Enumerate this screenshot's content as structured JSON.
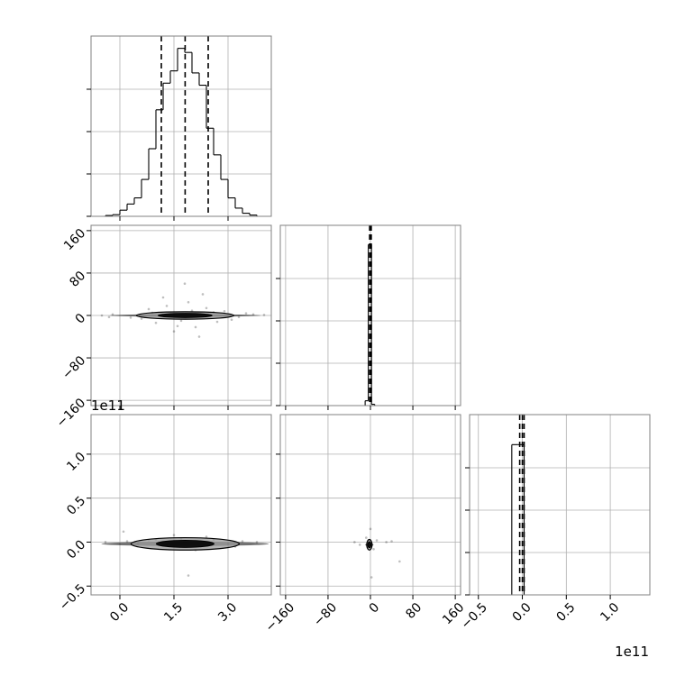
{
  "chart_data": {
    "type": "corner",
    "colors": {
      "ink": "#000000",
      "grid": "#b0b0b0",
      "panel_edge": "#808080"
    },
    "grid": true,
    "params": [
      {
        "id": "p0",
        "range": [
          -0.8,
          4.2
        ],
        "ticks": [
          0.0,
          1.5,
          3.0
        ],
        "tick_labels": [
          "0.0",
          "1.5",
          "3.0"
        ]
      },
      {
        "id": "p1",
        "range": [
          -170,
          170
        ],
        "ticks": [
          -160,
          -80,
          0,
          80,
          160
        ],
        "tick_labels": [
          "−160",
          "−80",
          "0",
          "80",
          "160"
        ]
      },
      {
        "id": "p2",
        "range": [
          -0.6,
          1.45
        ],
        "ticks": [
          -0.5,
          0.0,
          0.5,
          1.0
        ],
        "tick_labels": [
          "−0.5",
          "0.0",
          "0.5",
          "1.0"
        ],
        "offset_label": "1e11"
      }
    ],
    "histograms": [
      {
        "param": "p0",
        "bin_edges": [
          -0.4,
          -0.2,
          0.0,
          0.2,
          0.4,
          0.6,
          0.8,
          1.0,
          1.2,
          1.4,
          1.6,
          1.8,
          2.0,
          2.2,
          2.4,
          2.6,
          2.8,
          3.0,
          3.2,
          3.4,
          3.6,
          3.8
        ],
        "counts": [
          0.004,
          0.008,
          0.03,
          0.06,
          0.09,
          0.18,
          0.33,
          0.52,
          0.65,
          0.71,
          0.82,
          0.8,
          0.7,
          0.64,
          0.43,
          0.3,
          0.18,
          0.09,
          0.04,
          0.015,
          0.006
        ],
        "ylim": [
          0,
          0.88
        ],
        "quantiles": [
          1.15,
          1.81,
          2.45
        ]
      },
      {
        "param": "p1",
        "bin_edges": [
          -10,
          -4,
          2,
          8
        ],
        "counts": [
          0.03,
          1.0,
          0.008
        ],
        "ylim": [
          0,
          1.12
        ],
        "quantiles": [
          -1.5,
          0,
          1.5
        ]
      },
      {
        "param": "p2",
        "bin_edges": [
          -0.12,
          -0.05,
          0.02
        ],
        "counts": [
          1.0,
          1.0
        ],
        "ylim": [
          0,
          1.2
        ],
        "quantiles": [
          -0.03,
          0,
          0.02
        ]
      }
    ],
    "pair_plots": [
      {
        "x": "p0",
        "y": "p1",
        "center": [
          1.81,
          0
        ],
        "points": [
          [
            -0.5,
            0
          ],
          [
            -0.2,
            2
          ],
          [
            0.3,
            -4
          ],
          [
            0.8,
            12
          ],
          [
            1.0,
            -14
          ],
          [
            1.3,
            18
          ],
          [
            1.6,
            -20
          ],
          [
            1.9,
            25
          ],
          [
            2.1,
            -22
          ],
          [
            2.4,
            14
          ],
          [
            2.7,
            -12
          ],
          [
            2.9,
            8
          ],
          [
            3.3,
            -3
          ],
          [
            3.7,
            2
          ],
          [
            1.2,
            34
          ],
          [
            2.2,
            -40
          ],
          [
            1.8,
            60
          ],
          [
            0.6,
            -6
          ],
          [
            2.6,
            6
          ],
          [
            3.1,
            -8
          ],
          [
            1.5,
            -30
          ],
          [
            2.3,
            40
          ],
          [
            0.9,
            5
          ],
          [
            3.5,
            4
          ],
          [
            -0.3,
            -3
          ],
          [
            4.0,
            1
          ],
          [
            1.7,
            -10
          ],
          [
            2.0,
            9
          ]
        ],
        "contours": [
          {
            "level": "outer",
            "half_width": [
              1.35,
              7
            ]
          },
          {
            "level": "inner",
            "half_width": [
              0.75,
              4
            ]
          }
        ]
      },
      {
        "x": "p0",
        "y": "p2",
        "center": [
          1.81,
          -0.02
        ],
        "points": [
          [
            -0.4,
            0
          ],
          [
            0.2,
            0.01
          ],
          [
            0.5,
            -0.02
          ],
          [
            1.0,
            0.03
          ],
          [
            1.3,
            -0.03
          ],
          [
            1.7,
            0.04
          ],
          [
            2.2,
            -0.04
          ],
          [
            2.6,
            0.03
          ],
          [
            3.0,
            -0.02
          ],
          [
            3.4,
            0.01
          ],
          [
            1.5,
            0.08
          ],
          [
            2.1,
            -0.09
          ],
          [
            1.9,
            -0.38
          ],
          [
            0.1,
            0.12
          ],
          [
            3.2,
            -0.05
          ],
          [
            0.8,
            0.02
          ],
          [
            2.4,
            0.06
          ],
          [
            3.8,
            0
          ]
        ],
        "contours": [
          {
            "level": "outer",
            "half_width": [
              1.5,
              0.07
            ]
          },
          {
            "level": "inner",
            "half_width": [
              0.8,
              0.04
            ]
          }
        ]
      },
      {
        "x": "p1",
        "y": "p2",
        "center": [
          -2,
          -0.03
        ],
        "points": [
          [
            -4,
            -0.05
          ],
          [
            -1,
            -0.01
          ],
          [
            0,
            0.15
          ],
          [
            2,
            -0.4
          ],
          [
            -30,
            0
          ],
          [
            30,
            0
          ],
          [
            55,
            -0.22
          ],
          [
            -20,
            -0.03
          ],
          [
            12,
            0.02
          ],
          [
            -8,
            0.05
          ],
          [
            6,
            -0.08
          ],
          [
            40,
            0.01
          ]
        ],
        "contours": [
          {
            "level": "outer",
            "half_width": [
              5,
              0.06
            ]
          },
          {
            "level": "inner",
            "half_width": [
              3,
              0.035
            ]
          }
        ]
      }
    ]
  }
}
